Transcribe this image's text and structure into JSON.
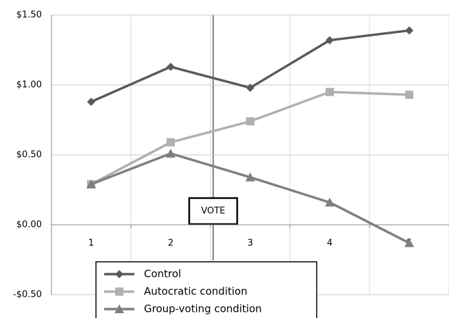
{
  "chart_data": {
    "type": "line",
    "categories": [
      "1",
      "2",
      "3",
      "4",
      "5"
    ],
    "series": [
      {
        "name": "Control",
        "color": "#5a5a5a",
        "marker": "diamond",
        "values": [
          0.88,
          1.13,
          0.98,
          1.32,
          1.39
        ]
      },
      {
        "name": "Autocratic condition",
        "color": "#b0b0b0",
        "marker": "square",
        "values": [
          0.29,
          0.59,
          0.74,
          0.95,
          0.93
        ]
      },
      {
        "name": "Group-voting condition",
        "color": "#7f7f7f",
        "marker": "triangle",
        "values": [
          0.29,
          0.51,
          0.34,
          0.16,
          -0.13
        ]
      }
    ],
    "ylim": [
      -0.5,
      1.5
    ],
    "yticks": [
      {
        "value": -0.5,
        "label": "-$0.50"
      },
      {
        "value": 0,
        "label": "$0.00"
      },
      {
        "value": 0.5,
        "label": "$0.50"
      },
      {
        "value": 1,
        "label": "$1.00"
      },
      {
        "value": 1.5,
        "label": "$1.50"
      }
    ],
    "grid": true,
    "annotation": "VOTE",
    "legend": "bottom"
  }
}
